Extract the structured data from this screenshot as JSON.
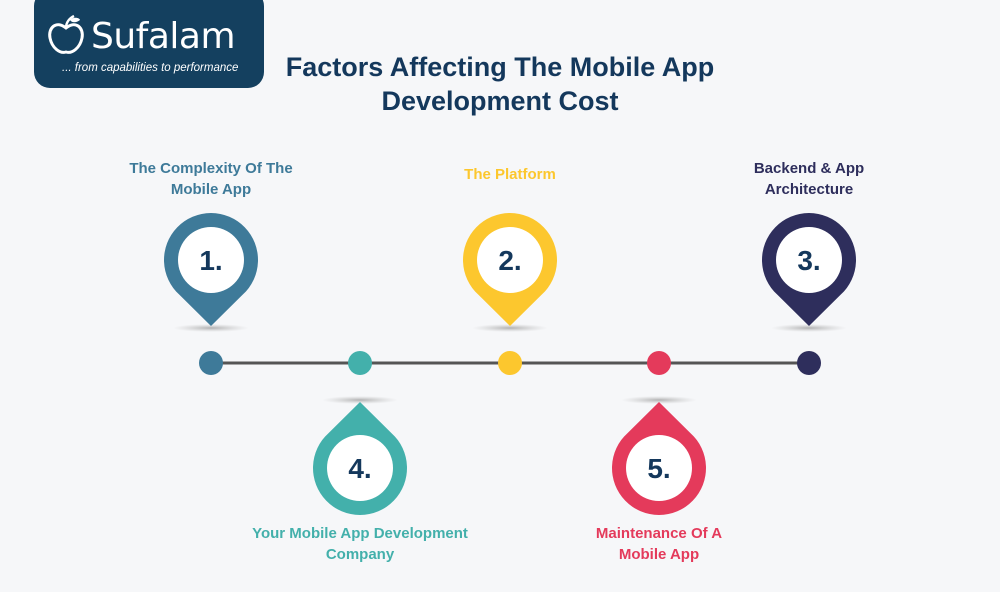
{
  "logo": {
    "name": "Sufalam",
    "tagline": "... from capabilities to performance",
    "bg_color": "#14405f"
  },
  "title": {
    "line1": "Factors Affecting The Mobile App",
    "line2": "Development Cost",
    "color": "#14385c"
  },
  "factors": [
    {
      "number": "1.",
      "label_lines": [
        "The Complexity Of The",
        "Mobile App"
      ],
      "color": "#3e7a99",
      "position": "above"
    },
    {
      "number": "2.",
      "label_lines": [
        "The Platform"
      ],
      "color": "#fcc72e",
      "position": "above"
    },
    {
      "number": "3.",
      "label_lines": [
        "Backend & App",
        "Architecture"
      ],
      "color": "#2e2e5c",
      "position": "above"
    },
    {
      "number": "4.",
      "label_lines": [
        "Your Mobile App Development",
        "Company"
      ],
      "color": "#43b0ab",
      "position": "below"
    },
    {
      "number": "5.",
      "label_lines": [
        "Maintenance Of A",
        "Mobile App"
      ],
      "color": "#e43a5b",
      "position": "below"
    }
  ],
  "timeline": {
    "dot_colors": [
      "#3e7a99",
      "#43b0ab",
      "#fcc72e",
      "#e43a5b",
      "#2e2e5c"
    ],
    "line_color": "#555555"
  }
}
